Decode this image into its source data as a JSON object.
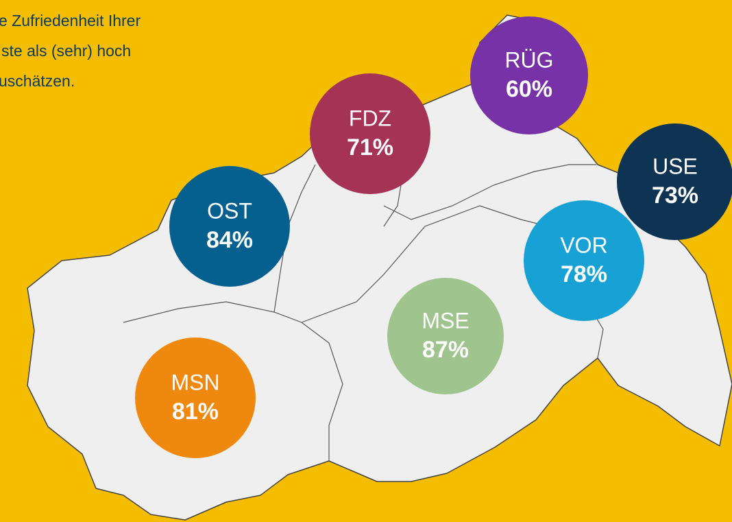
{
  "intro": {
    "lines": [
      "e Zufriedenheit Ihrer",
      "ste als (sehr) hoch",
      "uschätzen."
    ]
  },
  "regions": [
    {
      "name": "RÜG",
      "share": "60%",
      "color": "#7632a6"
    },
    {
      "name": "FDZ",
      "share": "71%",
      "color": "#a53356"
    },
    {
      "name": "USE",
      "share": "73%",
      "color": "#0f3453"
    },
    {
      "name": "OST",
      "share": "84%",
      "color": "#05608f"
    },
    {
      "name": "VOR",
      "share": "78%",
      "color": "#17a1d5"
    },
    {
      "name": "MSE",
      "share": "87%",
      "color": "#9fc48d"
    },
    {
      "name": "MSN",
      "share": "81%",
      "color": "#ee880f"
    }
  ]
}
